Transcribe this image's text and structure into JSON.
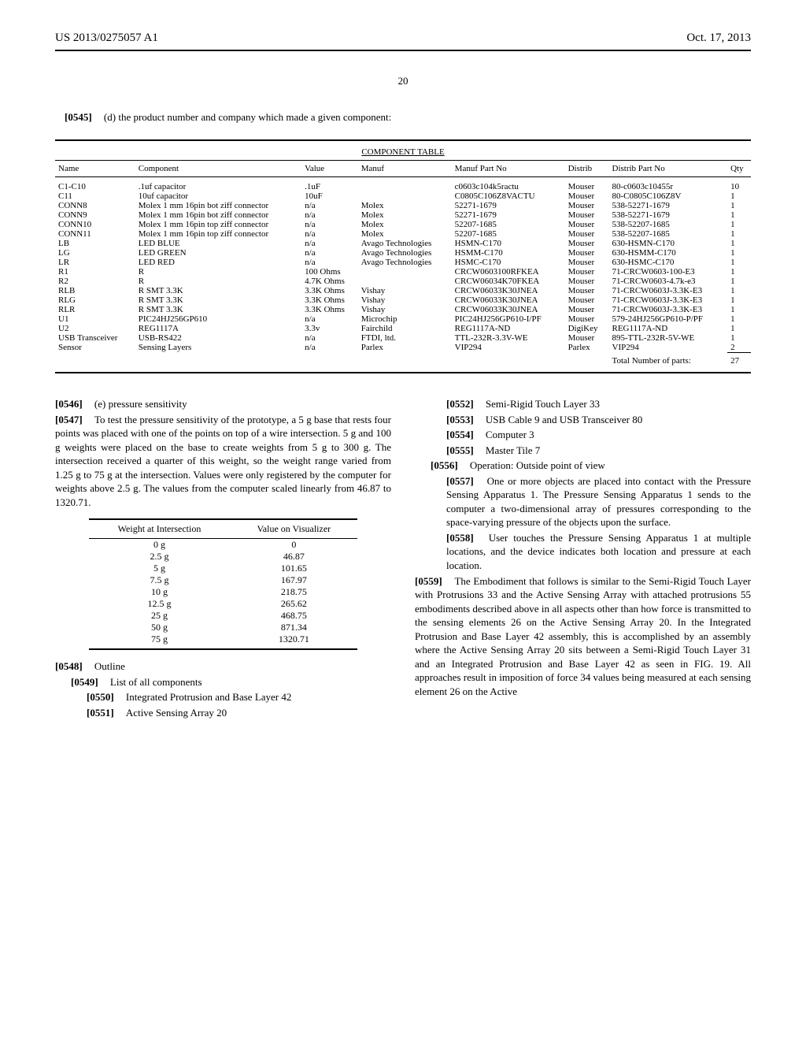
{
  "header": {
    "left": "US 2013/0275057 A1",
    "right": "Oct. 17, 2013",
    "page_number": "20"
  },
  "intro": {
    "num": "[0545]",
    "text": "(d) the product number and company which made a given component:"
  },
  "component_table": {
    "title": "COMPONENT TABLE",
    "columns": [
      "Name",
      "Component",
      "Value",
      "Manuf",
      "Manuf Part No",
      "Distrib",
      "Distrib Part No",
      "Qty"
    ],
    "rows": [
      [
        "C1-C10",
        ".1uf capacitor",
        ".1uF",
        "",
        "c0603c104k5ractu",
        "Mouser",
        "80-c0603c10455r",
        "10"
      ],
      [
        "C11",
        "10uf capacitor",
        "10uF",
        "",
        "C0805C106Z8VACTU",
        "Mouser",
        "80-C0805C106Z8V",
        "1"
      ],
      [
        "CONN8",
        "Molex 1 mm 16pin bot ziff connector",
        "n/a",
        "Molex",
        "52271-1679",
        "Mouser",
        "538-52271-1679",
        "1"
      ],
      [
        "CONN9",
        "Molex 1 mm 16pin bot ziff connector",
        "n/a",
        "Molex",
        "52271-1679",
        "Mouser",
        "538-52271-1679",
        "1"
      ],
      [
        "CONN10",
        "Molex 1 mm 16pin top ziff connector",
        "n/a",
        "Molex",
        "52207-1685",
        "Mouser",
        "538-52207-1685",
        "1"
      ],
      [
        "CONN11",
        "Molex 1 mm 16pin top ziff connector",
        "n/a",
        "Molex",
        "52207-1685",
        "Mouser",
        "538-52207-1685",
        "1"
      ],
      [
        "LB",
        "LED BLUE",
        "n/a",
        "Avago Technologies",
        "HSMN-C170",
        "Mouser",
        "630-HSMN-C170",
        "1"
      ],
      [
        "LG",
        "LED GREEN",
        "n/a",
        "Avago Technologies",
        "HSMM-C170",
        "Mouser",
        "630-HSMM-C170",
        "1"
      ],
      [
        "LR",
        "LED RED",
        "n/a",
        "Avago Technologies",
        "HSMC-C170",
        "Mouser",
        "630-HSMC-C170",
        "1"
      ],
      [
        "R1",
        "R",
        "100 Ohms",
        "",
        "CRCW0603100RFKEA",
        "Mouser",
        "71-CRCW0603-100-E3",
        "1"
      ],
      [
        "R2",
        "R",
        "4.7K Ohms",
        "",
        "CRCW06034K70FKEA",
        "Mouser",
        "71-CRCW0603-4.7k-e3",
        "1"
      ],
      [
        "RLB",
        "R SMT 3.3K",
        "3.3K Ohms",
        "Vishay",
        "CRCW06033K30JNEA",
        "Mouser",
        "71-CRCW0603J-3.3K-E3",
        "1"
      ],
      [
        "RLG",
        "R SMT 3.3K",
        "3.3K Ohms",
        "Vishay",
        "CRCW06033K30JNEA",
        "Mouser",
        "71-CRCW0603J-3.3K-E3",
        "1"
      ],
      [
        "RLR",
        "R SMT 3.3K",
        "3.3K Ohms",
        "Vishay",
        "CRCW06033K30JNEA",
        "Mouser",
        "71-CRCW0603J-3.3K-E3",
        "1"
      ],
      [
        "U1",
        "PIC24HJ256GP610",
        "n/a",
        "Microchip",
        "PIC24HJ256GP610-I/PF",
        "Mouser",
        "579-24HJ256GP610-P/PF",
        "1"
      ],
      [
        "U2",
        "REG1117A",
        "3.3v",
        "Fairchild",
        "REG1117A-ND",
        "DigiKey",
        "REG1117A-ND",
        "1"
      ],
      [
        "USB Transceiver",
        "USB-RS422",
        "n/a",
        "FTDI, ltd.",
        "TTL-232R-3.3V-WE",
        "Mouser",
        "895-TTL-232R-5V-WE",
        "1"
      ],
      [
        "Sensor",
        "Sensing Layers",
        "n/a",
        "Parlex",
        "VIP294",
        "Parlex",
        "VIP294",
        "2"
      ]
    ],
    "total_label": "Total Number of parts:",
    "total_value": "27"
  },
  "left_col": {
    "p0546": {
      "num": "[0546]",
      "text": "(e) pressure sensitivity"
    },
    "p0547": {
      "num": "[0547]",
      "text": "To test the pressure sensitivity of the prototype, a 5 g base that rests four points was placed with one of the points on top of a wire intersection. 5 g and 100 g weights were placed on the base to create weights from 5 g to 300 g. The intersection received a quarter of this weight, so the weight range varied from 1.25 g to 75 g at the intersection. Values were only registered by the computer for weights above 2.5 g. The values from the computer scaled linearly from 46.87 to 1320.71."
    },
    "weight_table": {
      "headers": [
        "Weight at Intersection",
        "Value on Visualizer"
      ],
      "rows": [
        [
          "0 g",
          "0"
        ],
        [
          "2.5 g",
          "46.87"
        ],
        [
          "5 g",
          "101.65"
        ],
        [
          "7.5 g",
          "167.97"
        ],
        [
          "10 g",
          "218.75"
        ],
        [
          "12.5 g",
          "265.62"
        ],
        [
          "25 g",
          "468.75"
        ],
        [
          "50 g",
          "871.34"
        ],
        [
          "75 g",
          "1320.71"
        ]
      ]
    },
    "p0548": {
      "num": "[0548]",
      "text": "Outline"
    },
    "p0549": {
      "num": "[0549]",
      "text": "List of all components"
    },
    "p0550": {
      "num": "[0550]",
      "text": "Integrated Protrusion and Base Layer 42"
    },
    "p0551": {
      "num": "[0551]",
      "text": "Active Sensing Array 20"
    }
  },
  "right_col": {
    "p0552": {
      "num": "[0552]",
      "text": "Semi-Rigid Touch Layer 33"
    },
    "p0553": {
      "num": "[0553]",
      "text": "USB Cable 9 and USB Transceiver 80"
    },
    "p0554": {
      "num": "[0554]",
      "text": "Computer 3"
    },
    "p0555": {
      "num": "[0555]",
      "text": "Master Tile 7"
    },
    "p0556": {
      "num": "[0556]",
      "text": "Operation: Outside point of view"
    },
    "p0557": {
      "num": "[0557]",
      "text": "One or more objects are placed into contact with the Pressure Sensing Apparatus 1. The Pressure Sensing Apparatus 1 sends to the computer a two-dimensional array of pressures corresponding to the space-varying pressure of the objects upon the surface."
    },
    "p0558": {
      "num": "[0558]",
      "text": "User touches the Pressure Sensing Apparatus 1 at multiple locations, and the device indicates both location and pressure at each location."
    },
    "p0559": {
      "num": "[0559]",
      "text": "The Embodiment that follows is similar to the Semi-Rigid Touch Layer with Protrusions 33 and the Active Sensing Array with attached protrusions 55 embodiments described above in all aspects other than how force is transmitted to the sensing elements 26 on the Active Sensing Array 20. In the Integrated Protrusion and Base Layer 42 assembly, this is accomplished by an assembly where the Active Sensing Array 20 sits between a Semi-Rigid Touch Layer 31 and an Integrated Protrusion and Base Layer 42 as seen in FIG. 19. All approaches result in imposition of force 34 values being measured at each sensing element 26 on the Active"
    }
  }
}
